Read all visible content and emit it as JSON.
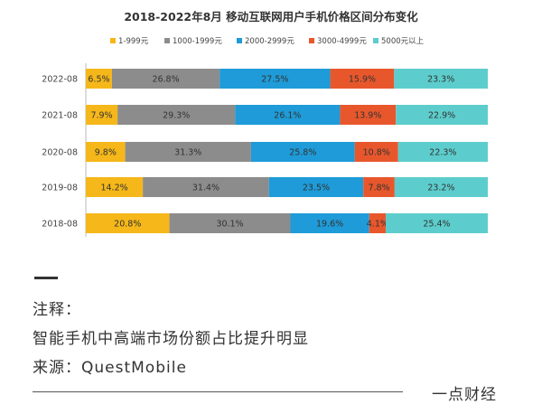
{
  "chart_data": {
    "type": "bar",
    "orientation": "horizontal",
    "stacked": "percent",
    "title": "2018-2022年8月 移动互联网用户手机价格区间分布变化",
    "categories": [
      "2022-08",
      "2021-08",
      "2020-08",
      "2019-08",
      "2018-08"
    ],
    "series": [
      {
        "name": "1-999元",
        "color": "#F5B719",
        "values": [
          6.5,
          7.9,
          9.8,
          14.2,
          20.8
        ],
        "labels": [
          "6.5%",
          "7.9%",
          "9.8%",
          "14.2%",
          "20.8%"
        ]
      },
      {
        "name": "1000-1999元",
        "color": "#8C8C8C",
        "values": [
          26.8,
          29.3,
          31.3,
          31.4,
          30.1
        ],
        "labels": [
          "26.8%",
          "29.3%",
          "31.3%",
          "31.4%",
          "30.1%"
        ]
      },
      {
        "name": "2000-2999元",
        "color": "#1E9BD8",
        "values": [
          27.5,
          26.1,
          25.8,
          23.5,
          19.6
        ],
        "labels": [
          "27.5%",
          "26.1%",
          "25.8%",
          "23.5%",
          "19.6%"
        ]
      },
      {
        "name": "3000-4999元",
        "color": "#E8572C",
        "values": [
          15.9,
          13.9,
          10.8,
          7.8,
          4.1
        ],
        "labels": [
          "15.9%",
          "13.9%",
          "10.8%",
          "7.8%",
          "4.1%"
        ]
      },
      {
        "name": "5000元以上",
        "color": "#5CCDCC",
        "values": [
          23.3,
          22.9,
          22.3,
          23.2,
          25.4
        ],
        "labels": [
          "23.3%",
          "22.9%",
          "22.3%",
          "23.2%",
          "25.4%"
        ]
      }
    ],
    "xlim": [
      0,
      100
    ],
    "legend": "top"
  },
  "notes": {
    "heading": "注释：",
    "body": "智能手机中高端市场份额占比提升明显",
    "source": "来源：QuestMobile"
  },
  "brand": "一点财经"
}
